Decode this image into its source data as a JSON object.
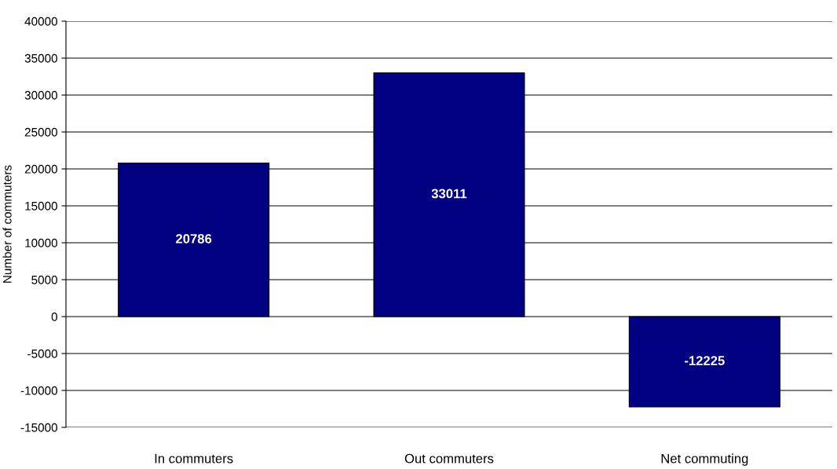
{
  "chart_data": {
    "type": "bar",
    "ylabel": "Number of commuters",
    "categories": [
      "In commuters",
      "Out commuters",
      "Net commuting"
    ],
    "values": [
      20786,
      33011,
      -12225
    ],
    "color": "#000080",
    "ylim": [
      -15000,
      40000
    ],
    "yticks": [
      -15000,
      -10000,
      -5000,
      0,
      5000,
      10000,
      15000,
      20000,
      25000,
      30000,
      35000,
      40000
    ],
    "grid": "y",
    "data_labels": true
  }
}
